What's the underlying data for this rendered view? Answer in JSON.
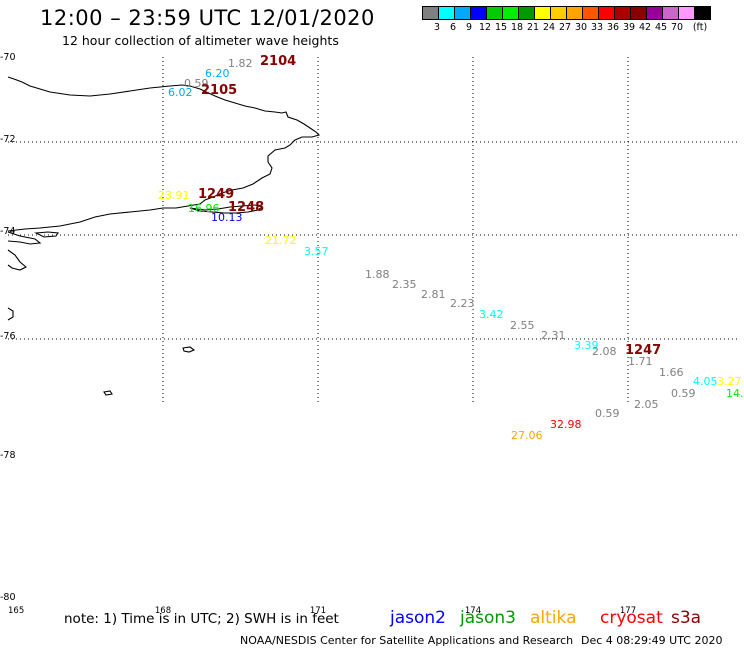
{
  "header": {
    "title": "12:00 – 23:59 UTC 12/01/2020",
    "subtitle": "12 hour collection of altimeter wave heights"
  },
  "colorbar": {
    "colors": [
      "#808080",
      "#00ffff",
      "#00aaff",
      "#0000ff",
      "#00cc00",
      "#00ee00",
      "#009900",
      "#ffff00",
      "#ffcc00",
      "#ffa500",
      "#ff5500",
      "#ff0000",
      "#aa0000",
      "#880000",
      "#990099",
      "#cc66cc",
      "#ff99ff",
      "#000000"
    ],
    "labels": [
      "3",
      "6",
      "9",
      "12",
      "15",
      "18",
      "21",
      "24",
      "27",
      "30",
      "33",
      "36",
      "39",
      "42",
      "45",
      "70",
      "(ft)"
    ]
  },
  "axes": {
    "lat_labels": [
      "-70",
      "-72",
      "-74",
      "-76",
      "-78",
      "-80"
    ],
    "lon_labels": [
      "165",
      "168",
      "171",
      "174",
      "177"
    ]
  },
  "wave_labels": [
    {
      "text": "1.82",
      "color": "#808080"
    },
    {
      "text": "2104",
      "color": "#880000"
    },
    {
      "text": "6.20",
      "color": "#00aaff"
    },
    {
      "text": "0.59",
      "color": "#808080"
    },
    {
      "text": "6.02",
      "color": "#00aaff"
    },
    {
      "text": "2105",
      "color": "#880000"
    },
    {
      "text": "23.91",
      "color": "#ffff00"
    },
    {
      "text": "1249",
      "color": "#880000"
    },
    {
      "text": "16.96",
      "color": "#00ee00"
    },
    {
      "text": "1248",
      "color": "#880000"
    },
    {
      "text": "10.13",
      "color": "#0000ff"
    },
    {
      "text": "21.72",
      "color": "#ffff00"
    },
    {
      "text": "3.57",
      "color": "#00ffff"
    },
    {
      "text": "1.88",
      "color": "#808080"
    },
    {
      "text": "2.35",
      "color": "#808080"
    },
    {
      "text": "2.81",
      "color": "#808080"
    },
    {
      "text": "2.23",
      "color": "#808080"
    },
    {
      "text": "3.42",
      "color": "#00ffff"
    },
    {
      "text": "2.55",
      "color": "#808080"
    },
    {
      "text": "2.31",
      "color": "#808080"
    },
    {
      "text": "3.39",
      "color": "#00ffff"
    },
    {
      "text": "2.08",
      "color": "#808080"
    },
    {
      "text": "1247",
      "color": "#880000"
    },
    {
      "text": "1.71",
      "color": "#808080"
    },
    {
      "text": "1.66",
      "color": "#808080"
    },
    {
      "text": "4.05",
      "color": "#00ffff"
    },
    {
      "text": "3.27",
      "color": "#ffff00"
    },
    {
      "text": "0.59",
      "color": "#808080"
    },
    {
      "text": "14.",
      "color": "#00ee00"
    },
    {
      "text": "2.05",
      "color": "#808080"
    },
    {
      "text": "0.59",
      "color": "#808080"
    },
    {
      "text": "32.98",
      "color": "#ff0000"
    },
    {
      "text": "27.06",
      "color": "#ffa500"
    }
  ],
  "footer": {
    "note": "note: 1) Time is in UTC; 2) SWH is in feet",
    "satellites": [
      {
        "name": "jason2",
        "color": "#0000ff"
      },
      {
        "name": "jason3",
        "color": "#009900"
      },
      {
        "name": "altika",
        "color": "#ffa500"
      },
      {
        "name": "cryosat",
        "color": "#ff0000"
      },
      {
        "name": "s3a",
        "color": "#880000"
      }
    ],
    "credit": "NOAA/NESDIS Center for Satellite Applications and Research",
    "timestamp": "Dec  4 08:29:49 UTC 2020"
  }
}
